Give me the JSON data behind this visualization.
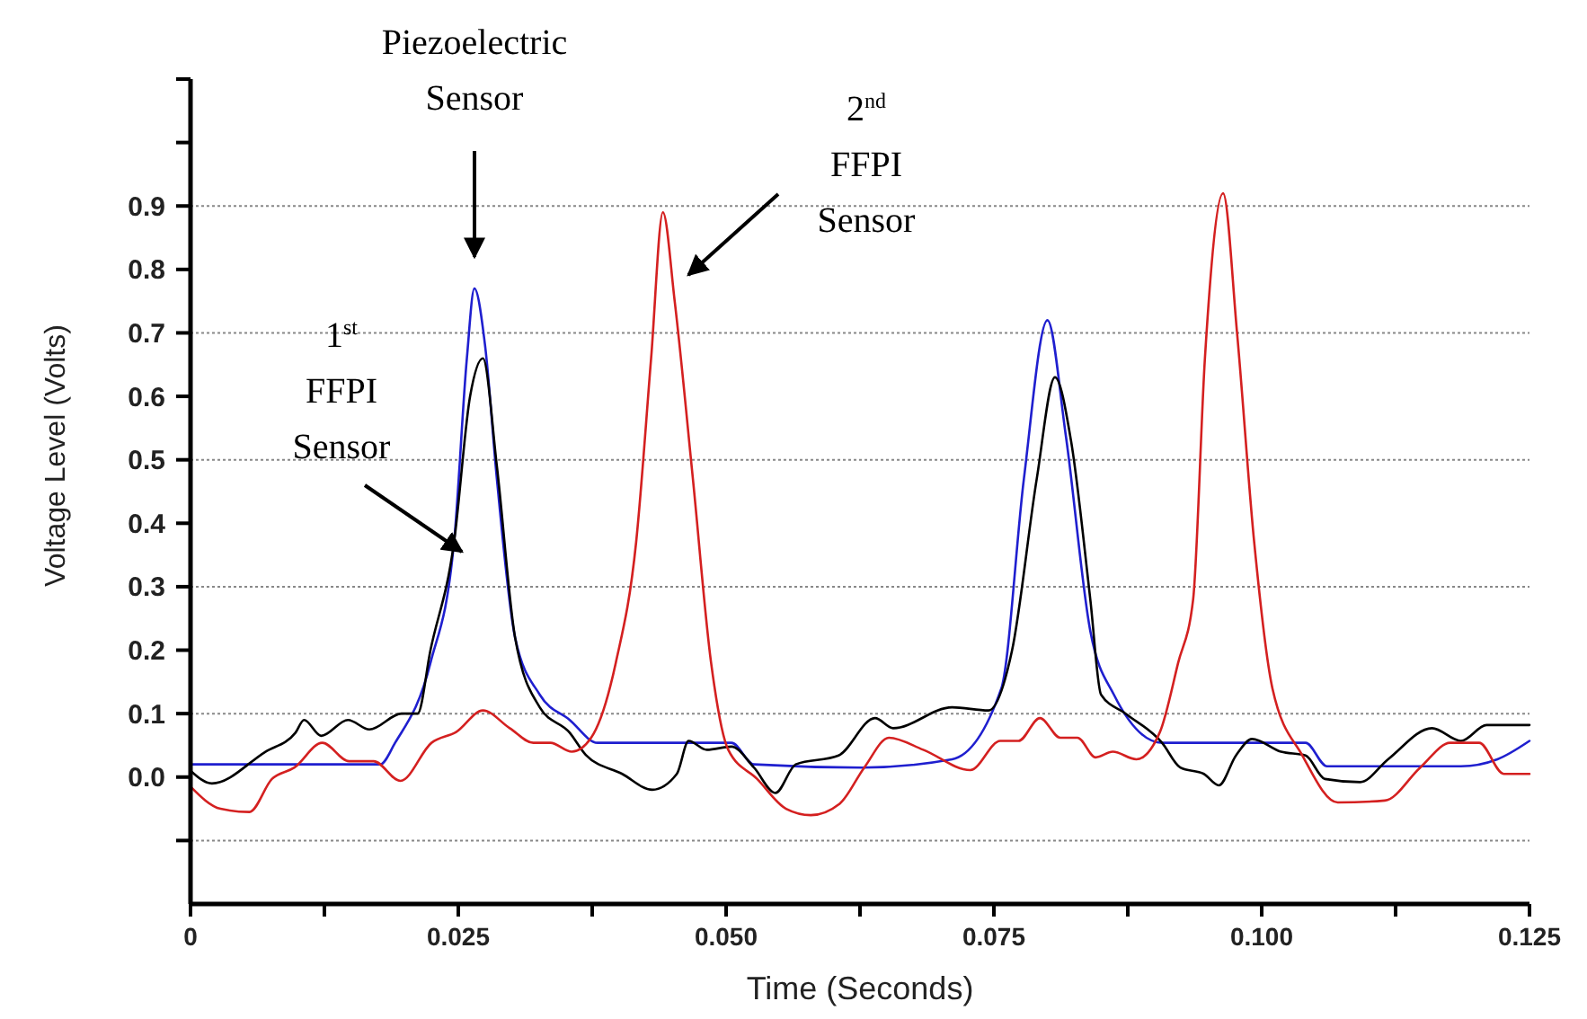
{
  "chart_data": {
    "type": "line",
    "xlabel": "Time (Seconds)",
    "ylabel": "Voltage Level (Volts)",
    "xlim": [
      0,
      0.125
    ],
    "ylim": [
      -0.2,
      1.1
    ],
    "xticks": [
      0,
      {
        "value": 0.0125,
        "label": null
      },
      0.025,
      {
        "value": 0.0375,
        "label": null
      },
      {
        "value": 0.05,
        "label": "0.050"
      },
      {
        "value": 0.0625,
        "label": null
      },
      0.075,
      {
        "value": 0.0875,
        "label": null
      },
      {
        "value": 0.1,
        "label": "0.100"
      },
      {
        "value": 0.1125,
        "label": null
      },
      0.125
    ],
    "yticks": [
      {
        "value": -0.1,
        "label": null
      },
      {
        "value": 0,
        "label": "0.0"
      },
      0.1,
      0.2,
      0.3,
      0.4,
      0.5,
      0.6,
      0.7,
      0.8,
      0.9,
      {
        "value": 1.0,
        "label": null
      }
    ],
    "grid": "y",
    "annotations": [
      "Piezoelectric\nSensor",
      "1$^{st}$\nFFPI\nSensor",
      "2$^{nd}$\nFFPI\nSensor"
    ],
    "series": [
      {
        "color": "#1f1fcf",
        "x": [
          0,
          0.01,
          0.0177,
          0.0191,
          0.0224,
          0.0246,
          0.0258,
          0.0265,
          0.0275,
          0.0286,
          0.0303,
          0.0326,
          0.0354,
          0.038,
          0.0505,
          0.0526,
          0.0627,
          0.0711,
          0.0757,
          0.0778,
          0.08,
          0.0817,
          0.084,
          0.0862,
          0.0907,
          0.0961,
          0.1041,
          0.1061,
          0.1186,
          0.122,
          0.125
        ],
        "values": [
          0.02,
          0.02,
          0.02,
          0.054,
          0.18,
          0.37,
          0.66,
          0.77,
          0.68,
          0.47,
          0.22,
          0.13,
          0.09,
          0.054,
          0.054,
          0.02,
          0.015,
          0.028,
          0.14,
          0.47,
          0.72,
          0.54,
          0.23,
          0.13,
          0.054,
          0.054,
          0.054,
          0.017,
          0.017,
          0.028,
          0.057
        ]
      },
      {
        "color": "#000000",
        "x": [
          0,
          0.002,
          0.007,
          0.0098,
          0.0106,
          0.0122,
          0.0147,
          0.0167,
          0.0197,
          0.0212,
          0.0224,
          0.0246,
          0.0261,
          0.0273,
          0.0286,
          0.0303,
          0.0326,
          0.0354,
          0.0369,
          0.0403,
          0.0431,
          0.0454,
          0.0465,
          0.0482,
          0.0505,
          0.0526,
          0.0546,
          0.0565,
          0.0605,
          0.0639,
          0.0656,
          0.0711,
          0.0745,
          0.0767,
          0.079,
          0.0807,
          0.0822,
          0.084,
          0.085,
          0.0873,
          0.0907,
          0.0924,
          0.0946,
          0.096,
          0.0976,
          0.0991,
          0.1018,
          0.1041,
          0.1059,
          0.1092,
          0.1118,
          0.1159,
          0.1186,
          0.121,
          0.125
        ],
        "values": [
          0.01,
          -0.01,
          0.04,
          0.07,
          0.09,
          0.065,
          0.09,
          0.075,
          0.1,
          0.1,
          0.2,
          0.37,
          0.6,
          0.66,
          0.49,
          0.22,
          0.11,
          0.07,
          0.035,
          0.005,
          -0.02,
          0.005,
          0.057,
          0.043,
          0.048,
          0.015,
          -0.025,
          0.02,
          0.034,
          0.093,
          0.077,
          0.11,
          0.105,
          0.2,
          0.47,
          0.63,
          0.53,
          0.28,
          0.13,
          0.1,
          0.054,
          0.015,
          0.005,
          -0.013,
          0.034,
          0.06,
          0.04,
          0.034,
          -0.003,
          -0.008,
          0.028,
          0.077,
          0.057,
          0.082,
          0.082
        ]
      },
      {
        "color": "#d42020",
        "x": [
          0,
          0.0028,
          0.0055,
          0.0076,
          0.0097,
          0.0123,
          0.0148,
          0.0171,
          0.0196,
          0.0225,
          0.0248,
          0.0273,
          0.0298,
          0.032,
          0.0336,
          0.0356,
          0.0374,
          0.0397,
          0.0416,
          0.043,
          0.0441,
          0.0452,
          0.0469,
          0.0486,
          0.0502,
          0.0529,
          0.0556,
          0.0579,
          0.0606,
          0.0629,
          0.0652,
          0.0684,
          0.0728,
          0.0756,
          0.0773,
          0.0793,
          0.0812,
          0.0828,
          0.0845,
          0.0861,
          0.0883,
          0.0905,
          0.0922,
          0.0936,
          0.0947,
          0.0964,
          0.0977,
          0.0993,
          0.101,
          0.1038,
          0.1071,
          0.1115,
          0.1148,
          0.1176,
          0.1203,
          0.1226,
          0.125
        ],
        "values": [
          -0.015,
          -0.05,
          -0.055,
          -0.003,
          0.015,
          0.054,
          0.025,
          0.025,
          -0.006,
          0.054,
          0.071,
          0.105,
          0.077,
          0.054,
          0.054,
          0.04,
          0.062,
          0.18,
          0.37,
          0.66,
          0.89,
          0.75,
          0.47,
          0.18,
          0.043,
          -0.003,
          -0.05,
          -0.06,
          -0.042,
          0.015,
          0.062,
          0.043,
          0.011,
          0.057,
          0.057,
          0.093,
          0.062,
          0.062,
          0.031,
          0.04,
          0.028,
          0.071,
          0.18,
          0.28,
          0.66,
          0.92,
          0.7,
          0.37,
          0.14,
          0.034,
          -0.04,
          -0.037,
          0.015,
          0.054,
          0.054,
          0.005,
          0.005
        ]
      }
    ]
  }
}
